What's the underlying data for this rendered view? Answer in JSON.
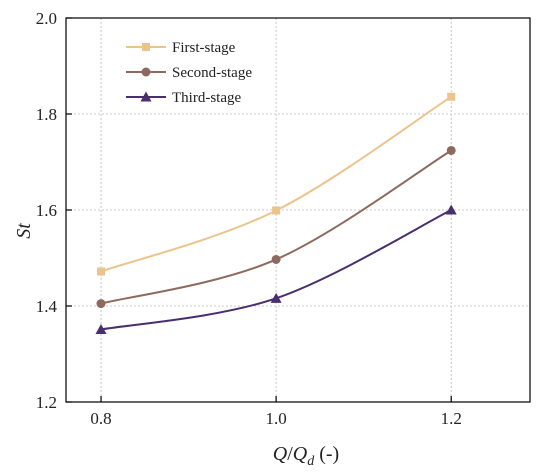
{
  "chart_data": {
    "type": "line",
    "x": [
      0.8,
      1.0,
      1.2
    ],
    "xticks": [
      "0.8",
      "1.0",
      "1.2"
    ],
    "yticks": [
      "1.2",
      "1.4",
      "1.6",
      "1.8",
      "2.0"
    ],
    "xlim": [
      0.76,
      1.29
    ],
    "ylim": [
      1.2,
      2.0
    ],
    "xlabel": {
      "main": "Q",
      "slash": "/",
      "main2": "Q",
      "sub": "d",
      "suffix": " (-)"
    },
    "ylabel": "St",
    "grid": true,
    "legend_position": "top-left",
    "series": [
      {
        "name": "First-stage",
        "values": [
          1.472,
          1.599,
          1.836
        ],
        "color": "#EBC48C",
        "marker": "square"
      },
      {
        "name": "Second-stage",
        "values": [
          1.405,
          1.497,
          1.724
        ],
        "color": "#8D6A5E",
        "marker": "circle"
      },
      {
        "name": "Third-stage",
        "values": [
          1.351,
          1.416,
          1.6
        ],
        "color": "#4A2E6E",
        "marker": "triangle"
      }
    ]
  }
}
